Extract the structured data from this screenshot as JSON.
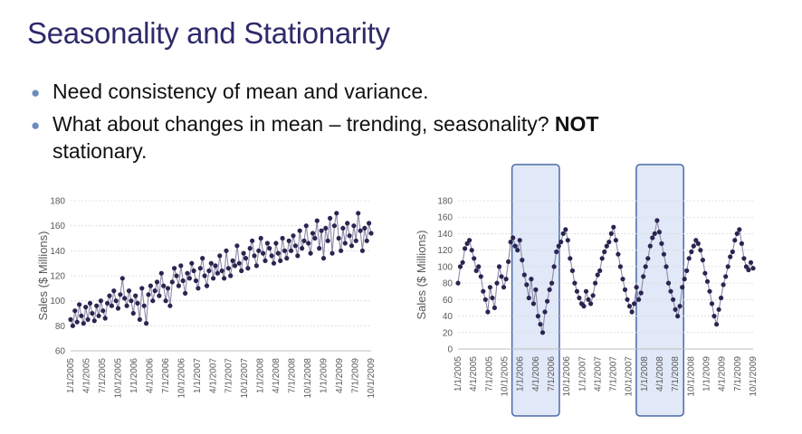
{
  "slide": {
    "title": "Seasonality and Stationarity",
    "bullets": [
      {
        "text": "Need consistency of mean and variance.",
        "bold": ""
      },
      {
        "text": "What about changes in mean – trending, seasonality? ",
        "bold": "NOT",
        "cont": "stationary."
      }
    ]
  },
  "colors": {
    "title": "#2e2a6b",
    "series": "#2a2550",
    "bullet": "#6a8cc0",
    "highlight_fill": "#c9d6f0",
    "highlight_stroke": "#4a6aa8"
  },
  "chart_data": [
    {
      "type": "line",
      "ylabel": "Sales ($ Millions)",
      "ylim": [
        60,
        180
      ],
      "yticks": [
        60,
        80,
        100,
        120,
        140,
        160,
        180
      ],
      "xticks": [
        "1/1/2005",
        "4/1/2005",
        "7/1/2005",
        "10/1/2005",
        "1/1/2006",
        "4/1/2006",
        "7/1/2006",
        "10/1/2006",
        "1/1/2007",
        "4/1/2007",
        "7/1/2007",
        "10/1/2007",
        "1/1/2008",
        "4/1/2008",
        "7/1/2008",
        "10/1/2008",
        "1/1/2009",
        "4/1/2009",
        "7/1/2009",
        "10/1/2009"
      ],
      "grid": true,
      "values": [
        85,
        80,
        92,
        83,
        97,
        88,
        82,
        95,
        85,
        98,
        90,
        84,
        96,
        88,
        100,
        92,
        86,
        98,
        104,
        96,
        108,
        100,
        94,
        105,
        118,
        102,
        96,
        108,
        100,
        90,
        104,
        98,
        85,
        110,
        96,
        82,
        105,
        112,
        100,
        108,
        115,
        104,
        122,
        112,
        100,
        110,
        96,
        115,
        126,
        120,
        112,
        128,
        116,
        106,
        122,
        118,
        130,
        124,
        116,
        110,
        126,
        134,
        120,
        112,
        124,
        130,
        118,
        128,
        122,
        136,
        124,
        118,
        140,
        126,
        120,
        132,
        128,
        144,
        130,
        124,
        138,
        134,
        126,
        142,
        148,
        136,
        128,
        140,
        150,
        138,
        132,
        146,
        142,
        136,
        130,
        146,
        138,
        132,
        150,
        140,
        134,
        148,
        140,
        152,
        144,
        136,
        156,
        142,
        148,
        160,
        146,
        138,
        154,
        150,
        164,
        142,
        156,
        134,
        158,
        148,
        166,
        138,
        160,
        170,
        150,
        140,
        158,
        146,
        162,
        152,
        144,
        160,
        148,
        170,
        156,
        140,
        158,
        148,
        162,
        154
      ]
    },
    {
      "type": "line",
      "ylabel": "Sales ($ Millions)",
      "ylim": [
        0,
        180
      ],
      "yticks": [
        0,
        20,
        40,
        60,
        80,
        100,
        120,
        140,
        160,
        180
      ],
      "xticks": [
        "1/1/2005",
        "4/1/2005",
        "7/1/2005",
        "10/1/2005",
        "1/1/2006",
        "4/1/2006",
        "7/1/2006",
        "10/1/2006",
        "1/1/2007",
        "4/1/2007",
        "7/1/2007",
        "10/1/2007",
        "1/1/2008",
        "4/1/2008",
        "7/1/2008",
        "10/1/2008",
        "1/1/2009",
        "4/1/2009",
        "7/1/2009",
        "10/1/2009"
      ],
      "grid": true,
      "highlights": [
        [
          "1/1/2006",
          "7/1/2006"
        ],
        [
          "1/1/2008",
          "7/1/2008"
        ]
      ],
      "values": [
        80,
        100,
        105,
        122,
        128,
        132,
        120,
        110,
        95,
        100,
        88,
        70,
        60,
        45,
        75,
        62,
        50,
        80,
        100,
        88,
        75,
        85,
        106,
        130,
        135,
        125,
        120,
        132,
        108,
        90,
        78,
        62,
        85,
        55,
        72,
        40,
        30,
        20,
        45,
        58,
        72,
        80,
        100,
        118,
        125,
        130,
        140,
        145,
        132,
        110,
        95,
        80,
        70,
        62,
        55,
        52,
        70,
        60,
        55,
        65,
        80,
        90,
        95,
        110,
        118,
        125,
        130,
        140,
        148,
        132,
        115,
        100,
        85,
        72,
        60,
        52,
        45,
        55,
        75,
        60,
        68,
        88,
        100,
        110,
        125,
        135,
        140,
        156,
        142,
        128,
        115,
        100,
        80,
        70,
        60,
        48,
        40,
        52,
        75,
        85,
        95,
        110,
        118,
        125,
        132,
        128,
        120,
        108,
        92,
        82,
        70,
        55,
        40,
        30,
        48,
        62,
        78,
        88,
        100,
        112,
        118,
        132,
        140,
        145,
        128,
        110,
        100,
        96,
        105,
        98
      ]
    }
  ]
}
